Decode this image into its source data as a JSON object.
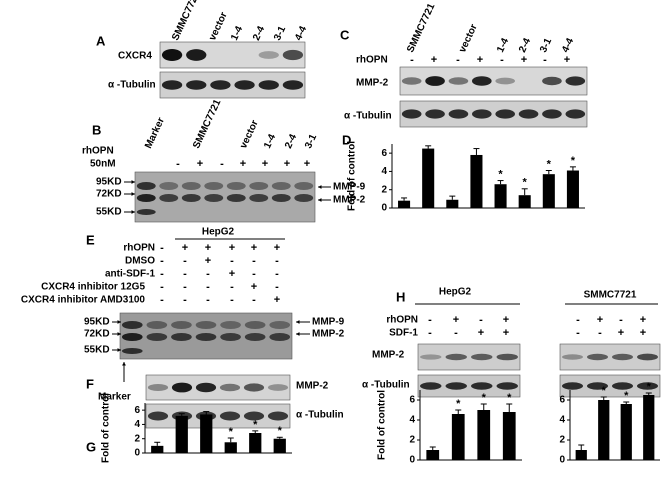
{
  "panels": {
    "A": {
      "label": "A",
      "lanes": [
        "SMMC7721",
        "vector",
        "1-4",
        "2-4",
        "3-1",
        "4-4"
      ],
      "rows": [
        "CXCR4",
        "α -Tubulin"
      ]
    },
    "B": {
      "label": "B",
      "lanes": [
        "Marker",
        "SMMC7721",
        "vector",
        "1-4",
        "2-4",
        "3-1"
      ],
      "treatments": [
        {
          "name": "rhOPN",
          "signs": [
            "-",
            "+",
            "-",
            "+",
            "+",
            "+",
            "+"
          ]
        }
      ],
      "dose": "50nM",
      "markers": [
        "95KD",
        "72KD",
        "55KD"
      ],
      "bands": [
        "MMP-9",
        "MMP-2"
      ]
    },
    "C": {
      "label": "C",
      "lanes": [
        "SMMC7721",
        "vector",
        "1-4",
        "2-4",
        "3-1",
        "4-4"
      ],
      "treatments": [
        {
          "name": "rhOPN",
          "signs": [
            "-",
            "+",
            "-",
            "+",
            "-",
            "+",
            "-",
            "+"
          ]
        }
      ],
      "rows": [
        "MMP-2",
        "α -Tubulin"
      ]
    },
    "D": {
      "label": "D"
    },
    "E": {
      "label": "E",
      "cell": "HepG2",
      "treatments": [
        {
          "name": "rhOPN",
          "signs": [
            "-",
            "+",
            "+",
            "+",
            "+",
            "+"
          ]
        },
        {
          "name": "DMSO",
          "signs": [
            "-",
            "-",
            "+",
            "-",
            "-",
            "-"
          ]
        },
        {
          "name": "anti-SDF-1",
          "signs": [
            "-",
            "-",
            "-",
            "+",
            "-",
            "-"
          ]
        },
        {
          "name": "CXCR4 inhibitor 12G5",
          "signs": [
            "-",
            "-",
            "-",
            "-",
            "+",
            "-"
          ]
        },
        {
          "name": "CXCR4 inhibitor AMD3100",
          "signs": [
            "-",
            "-",
            "-",
            "-",
            "-",
            "+"
          ]
        }
      ],
      "markers": [
        "95KD",
        "72KD",
        "55KD"
      ],
      "bands": [
        "MMP-9",
        "MMP-2"
      ],
      "marker": "Marker"
    },
    "F": {
      "label": "F",
      "rows": [
        "MMP-2",
        "α -Tubulin"
      ]
    },
    "G": {
      "label": "G"
    },
    "H": {
      "label": "H",
      "cells": [
        "HepG2",
        "SMMC7721"
      ],
      "treatments": [
        {
          "name": "rhOPN",
          "signs": [
            "-",
            "+",
            "-",
            "+"
          ]
        },
        {
          "name": "SDF-1",
          "signs": [
            "-",
            "-",
            "+",
            "+"
          ]
        }
      ],
      "rows": [
        "MMP-2",
        "α -Tubulin"
      ]
    }
  },
  "chart_data": [
    {
      "type": "bar",
      "ylabel": "Fold of control",
      "color": "#000000",
      "ylim": [
        0,
        7
      ],
      "yticks": [
        0,
        2,
        4,
        6
      ],
      "values": [
        0.8,
        6.5,
        0.9,
        5.8,
        2.6,
        1.4,
        3.7,
        4.1
      ],
      "errors": [
        0.3,
        0.3,
        0.4,
        0.7,
        0.4,
        0.7,
        0.4,
        0.4
      ],
      "significance": [
        null,
        null,
        null,
        null,
        "*",
        "*",
        "*",
        "*"
      ]
    },
    {
      "type": "bar",
      "ylabel": "Fold of control",
      "color": "#000000",
      "ylim": [
        0,
        7
      ],
      "yticks": [
        0,
        2,
        4,
        6
      ],
      "values": [
        1.0,
        5.2,
        5.4,
        1.5,
        2.8,
        2.0
      ],
      "errors": [
        0.5,
        0.3,
        0.4,
        0.6,
        0.3,
        0.2
      ],
      "significance": [
        null,
        null,
        null,
        "*",
        "*",
        "*"
      ]
    },
    {
      "type": "bar",
      "ylabel": "Fold of control",
      "color": "#000000",
      "ylim": [
        0,
        7
      ],
      "yticks": [
        0,
        2,
        4,
        6
      ],
      "values": [
        1.0,
        4.6,
        5.0,
        4.8
      ],
      "errors": [
        0.3,
        0.4,
        0.6,
        0.8
      ],
      "significance": [
        null,
        "*",
        "*",
        "*"
      ]
    },
    {
      "type": "bar",
      "color": "#000000",
      "ylim": [
        0,
        7
      ],
      "yticks": [
        0,
        2,
        4,
        6
      ],
      "values": [
        1.0,
        6.0,
        5.6,
        6.5
      ],
      "errors": [
        0.5,
        0.3,
        0.2,
        0.2
      ],
      "significance": [
        null,
        "*",
        "*",
        "*"
      ]
    }
  ]
}
